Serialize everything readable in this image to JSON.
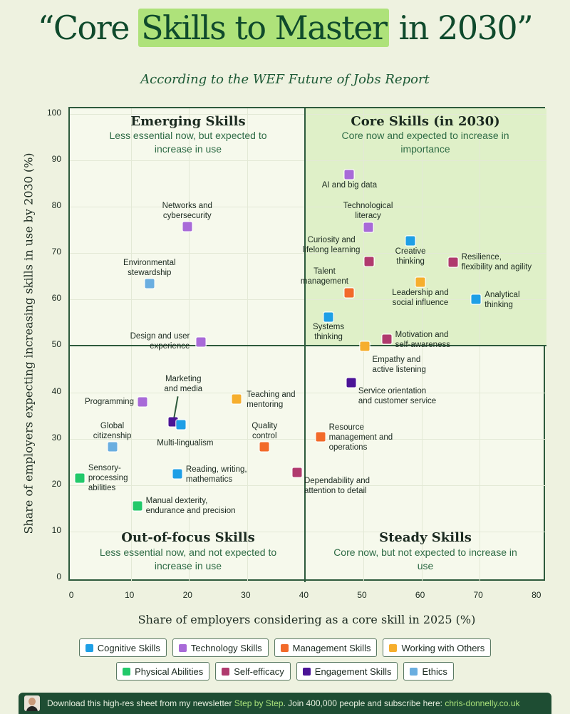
{
  "header": {
    "title_open": "“Core ",
    "title_highlight": "Skills to Master",
    "title_close": " in 2030”",
    "subtitle": "According to the WEF Future of Jobs Report"
  },
  "colors": {
    "Cognitive Skills": "#1e9fe6",
    "Technology Skills": "#a86ad8",
    "Management Skills": "#f26a2a",
    "Working with Others": "#f6ae2d",
    "Physical Abilities": "#22c96a",
    "Self-efficacy": "#b03a6e",
    "Engagement Skills": "#4b1496",
    "Ethics": "#6aaee0"
  },
  "chart_data": {
    "type": "scatter",
    "title": "Core Skills to Master in 2030",
    "xlabel": "Share of employers considering as a core skill in 2025 (%)",
    "ylabel": "Share of employers expecting increasing skills in use by 2030 (%)",
    "xlim": [
      0,
      80
    ],
    "ylim": [
      0,
      100
    ],
    "xticks": [
      "0",
      "10",
      "20",
      "30",
      "40",
      "50",
      "60",
      "70",
      "80"
    ],
    "yticks": [
      "0",
      "10",
      "20",
      "30",
      "40",
      "50",
      "60",
      "70",
      "80",
      "90",
      "100"
    ],
    "grid": true,
    "legend_placement": "bottom",
    "quadrants": [
      {
        "title": "Emerging Skills",
        "subtitle": "Less essential now, but expected to increase in use"
      },
      {
        "title": "Core Skills (in 2030)",
        "subtitle": "Core now and expected to increase in importance"
      },
      {
        "title": "Out-of-focus Skills",
        "subtitle": "Less essential now, and not expected to increase in use"
      },
      {
        "title": "Steady Skills",
        "subtitle": "Core now, but not expected to increase in use"
      }
    ],
    "points": [
      {
        "label": "AI and big data",
        "category": "Technology Skills",
        "x": 47.6,
        "y": 86.9
      },
      {
        "label": "Technological\nliteracy",
        "category": "Technology Skills",
        "x": 50.8,
        "y": 75.6
      },
      {
        "label": "Creative\nthinking",
        "category": "Cognitive Skills",
        "x": 58.1,
        "y": 72.7
      },
      {
        "label": "Curiosity and\nlifelong learning",
        "category": "Self-efficacy",
        "x": 51.0,
        "y": 68.2
      },
      {
        "label": "Resilience,\nflexibility and agility",
        "category": "Self-efficacy",
        "x": 65.4,
        "y": 68.1
      },
      {
        "label": "Talent\nmanagement",
        "category": "Management Skills",
        "x": 47.6,
        "y": 61.5
      },
      {
        "label": "Leadership and\nsocial influence",
        "category": "Working with Others",
        "x": 59.8,
        "y": 63.8
      },
      {
        "label": "Analytical\nthinking",
        "category": "Cognitive Skills",
        "x": 69.4,
        "y": 60.0
      },
      {
        "label": "Systems\nthinking",
        "category": "Cognitive Skills",
        "x": 44.0,
        "y": 56.2
      },
      {
        "label": "Motivation and\nself-awareness",
        "category": "Self-efficacy",
        "x": 54.0,
        "y": 51.5
      },
      {
        "label": "Empathy and\nactive listening",
        "category": "Working with Others",
        "x": 50.3,
        "y": 49.9
      },
      {
        "label": "Service orientation\nand customer service",
        "category": "Engagement Skills",
        "x": 47.9,
        "y": 42.1
      },
      {
        "label": "Resource\nmanagement and\noperations",
        "category": "Management Skills",
        "x": 42.6,
        "y": 30.4
      },
      {
        "label": "Dependability and\nattention to detail",
        "category": "Self-efficacy",
        "x": 38.6,
        "y": 22.7
      },
      {
        "label": "Quality\ncontrol",
        "category": "Management Skills",
        "x": 33.0,
        "y": 28.2
      },
      {
        "label": "Teaching and\nmentoring",
        "category": "Working with Others",
        "x": 28.2,
        "y": 38.6
      },
      {
        "label": "Networks and\ncybersecurity",
        "category": "Technology Skills",
        "x": 19.7,
        "y": 75.7
      },
      {
        "label": "Environmental\nstewardship",
        "category": "Ethics",
        "x": 13.2,
        "y": 63.4
      },
      {
        "label": "Design and user\nexperience",
        "category": "Technology Skills",
        "x": 22.1,
        "y": 50.8
      },
      {
        "label": "Marketing\nand media",
        "category": "Engagement Skills",
        "x": 17.3,
        "y": 33.7
      },
      {
        "label": "Multi-lingualism",
        "category": "Cognitive Skills",
        "x": 18.6,
        "y": 33.0
      },
      {
        "label": "Programming",
        "category": "Technology Skills",
        "x": 12.0,
        "y": 38.0
      },
      {
        "label": "Global\ncitizenship",
        "category": "Ethics",
        "x": 6.8,
        "y": 28.2
      },
      {
        "label": "Reading, writing,\nmathematics",
        "category": "Cognitive Skills",
        "x": 18.0,
        "y": 22.4
      },
      {
        "label": "Sensory-\nprocessing\nabilities",
        "category": "Physical Abilities",
        "x": 1.2,
        "y": 21.5
      },
      {
        "label": "Manual dexterity,\nendurance and precision",
        "category": "Physical Abilities",
        "x": 11.1,
        "y": 15.6
      }
    ],
    "legend": [
      "Cognitive Skills",
      "Technology Skills",
      "Management Skills",
      "Working with Others",
      "Physical Abilities",
      "Self-efficacy",
      "Engagement Skills",
      "Ethics"
    ]
  },
  "footer": {
    "text_before": "Download this high-res sheet from my newsletter ",
    "newsletter": "Step by Step",
    "text_middle": ". Join 400,000 people and subscribe here: ",
    "link": "chris-donnelly.co.uk"
  }
}
